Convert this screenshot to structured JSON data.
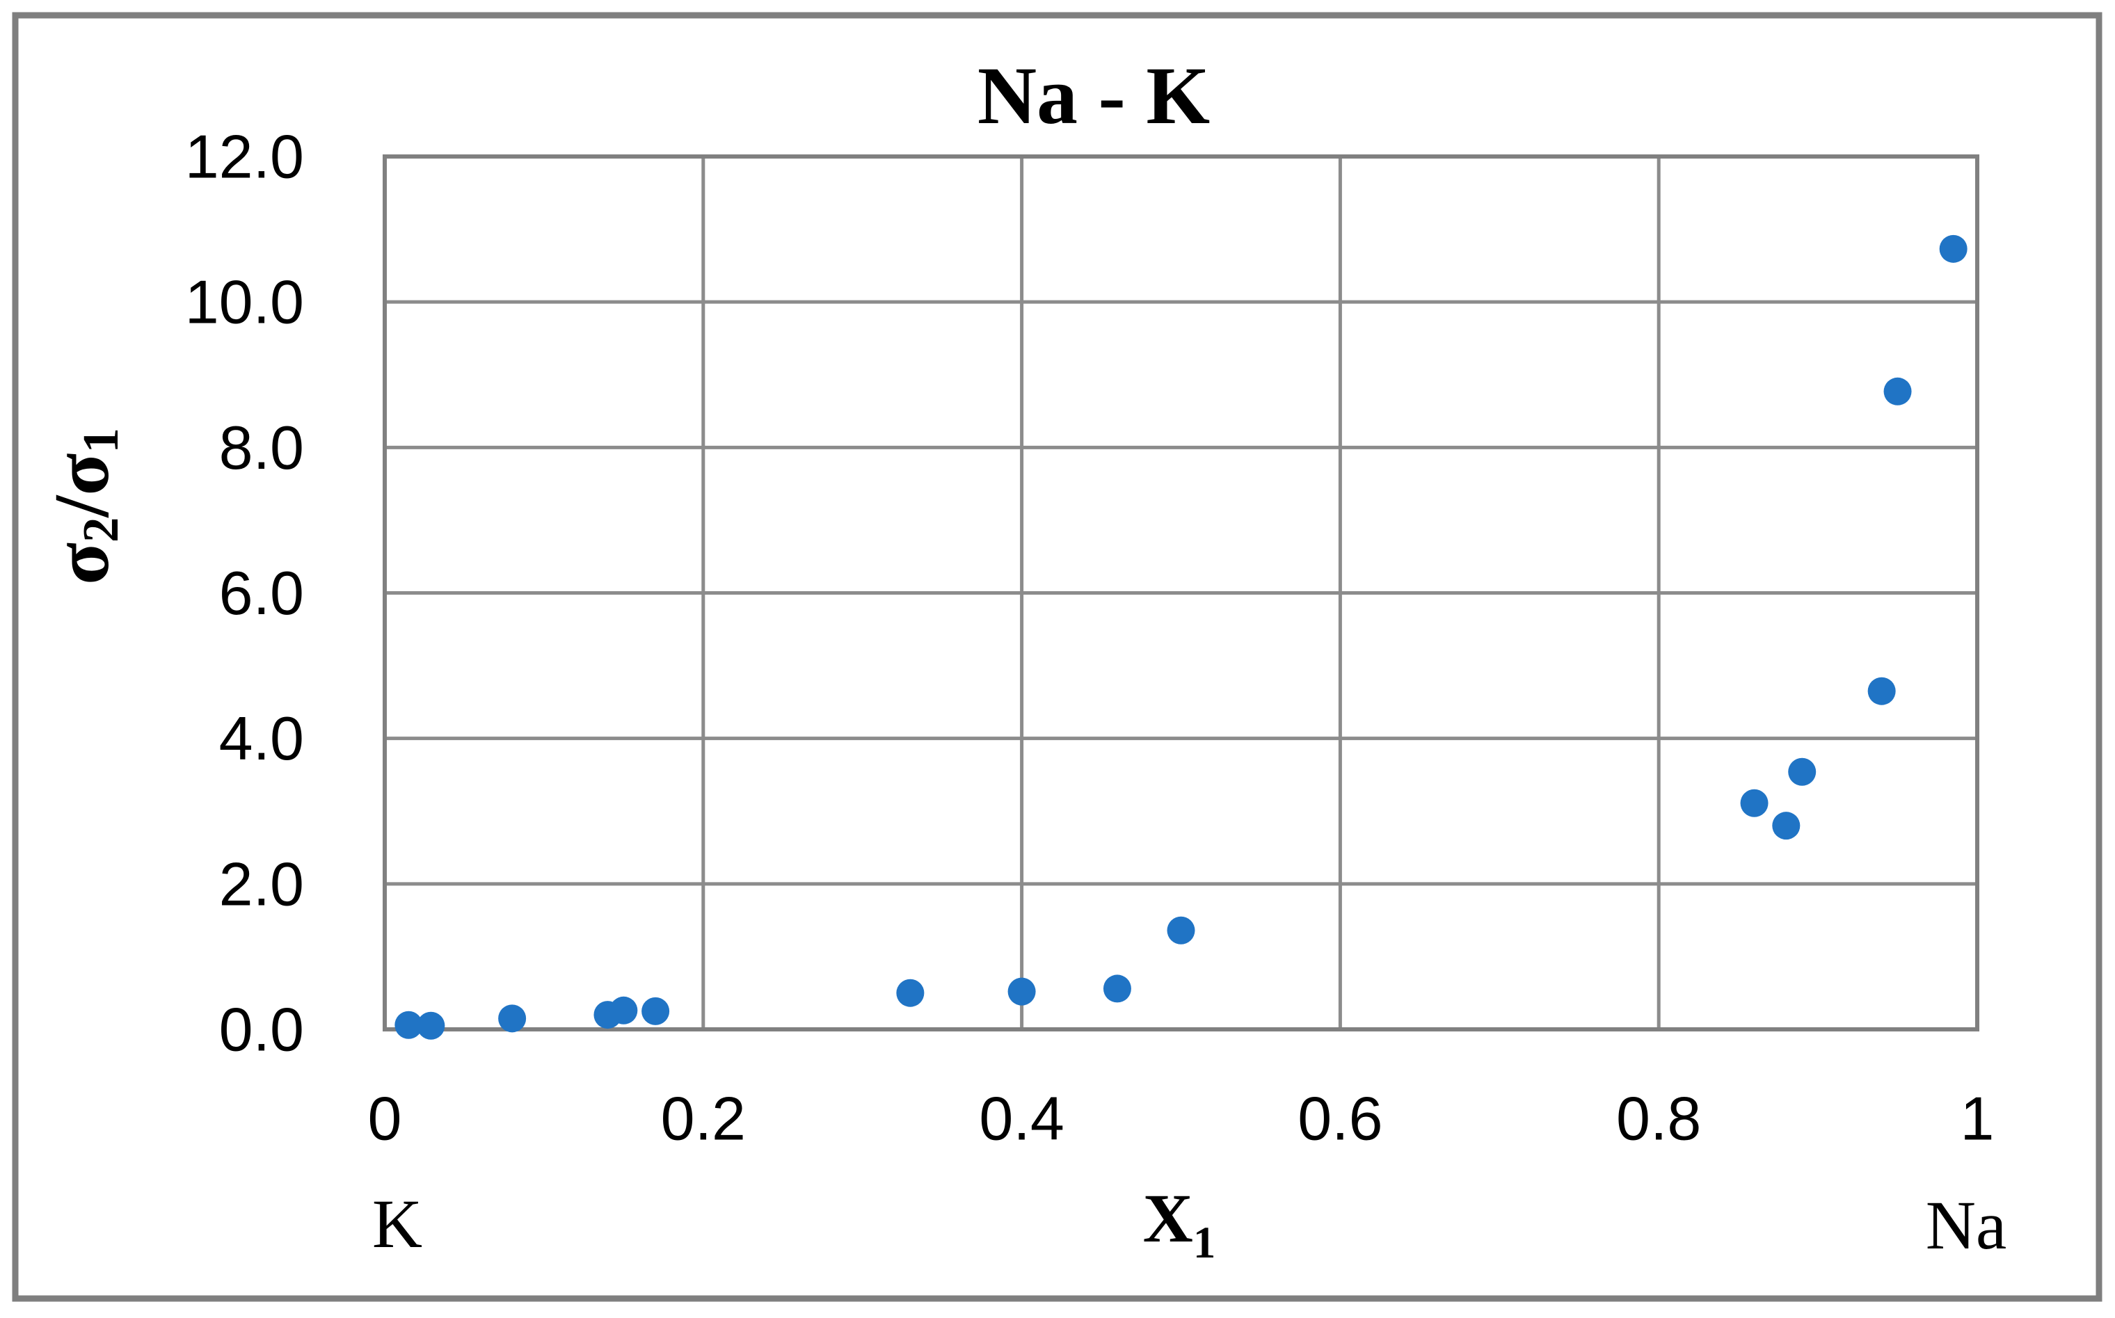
{
  "title": "Na - K",
  "labels": {
    "y_axis": {
      "part1": "σ",
      "sub1": "2",
      "part2": "/σ",
      "sub2": "1"
    },
    "x_axis": {
      "base": "X",
      "sub": "1"
    },
    "left_end": "K",
    "right_end": "Na"
  },
  "colors": {
    "marker": "#2074C5",
    "grid": "#8C8C8C",
    "plot_border": "#808080",
    "figure_border": "#7F7F7F",
    "text": "#000000",
    "background": "#FFFFFF"
  },
  "chart_data": {
    "type": "scatter",
    "title": "Na - K",
    "xlabel": "X1",
    "ylabel": "σ2/σ1",
    "x_endpoint_labels": {
      "left": "K",
      "right": "Na"
    },
    "xlim": [
      0,
      1
    ],
    "ylim": [
      0,
      12
    ],
    "xticks": [
      0,
      0.2,
      0.4,
      0.6,
      0.8,
      1
    ],
    "xtick_labels": [
      "0",
      "0.2",
      "0.4",
      "0.6",
      "0.8",
      "1"
    ],
    "yticks": [
      0,
      2,
      4,
      6,
      8,
      10,
      12
    ],
    "ytick_labels": [
      "0.0",
      "2.0",
      "4.0",
      "6.0",
      "8.0",
      "10.0",
      "12.0"
    ],
    "grid": true,
    "legend": false,
    "series": [
      {
        "name": "Na - K",
        "marker": "circle",
        "color": "#2074C5",
        "points": [
          [
            0.015,
            0.06
          ],
          [
            0.029,
            0.05
          ],
          [
            0.08,
            0.15
          ],
          [
            0.14,
            0.2
          ],
          [
            0.15,
            0.26
          ],
          [
            0.17,
            0.25
          ],
          [
            0.33,
            0.5
          ],
          [
            0.4,
            0.52
          ],
          [
            0.46,
            0.56
          ],
          [
            0.5,
            1.36
          ],
          [
            0.86,
            3.11
          ],
          [
            0.88,
            2.8
          ],
          [
            0.89,
            3.54
          ],
          [
            0.94,
            4.65
          ],
          [
            0.95,
            8.77
          ],
          [
            0.985,
            10.73
          ]
        ]
      }
    ]
  }
}
